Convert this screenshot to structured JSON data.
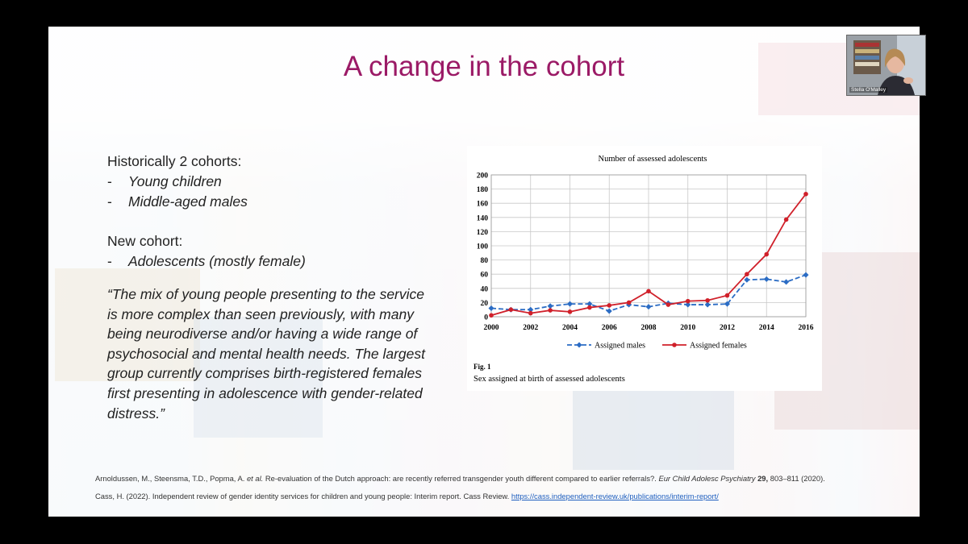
{
  "slide": {
    "title": "A change in the cohort",
    "historic_heading": "Historically 2 cohorts:",
    "historic_items": [
      "Young children",
      "Middle-aged males"
    ],
    "new_heading": "New cohort:",
    "new_items": [
      "Adolescents (mostly female)"
    ],
    "bullet_marker": "-",
    "quote": "“The mix of young people presenting to the service is more complex than seen previously, with many being neurodiverse and/or having a wide range of psychosocial and mental health needs. The largest group currently comprises birth-registered females first presenting in adolescence with gender-related distress.”",
    "references": {
      "ref1_authors": "Arnoldussen, M., Steensma, T.D., Popma, A. ",
      "ref1_etal": "et al.",
      "ref1_title": " Re-evaluation of the Dutch approach: are recently referred transgender youth different compared to earlier referrals?. ",
      "ref1_journal": "Eur Child Adolesc Psychiatry",
      "ref1_volume": " 29,",
      "ref1_pages": " 803–811 (2020).",
      "ref2_text": "Cass, H. (2022). Independent review of gender identity services for children and young people: Interim report. Cass Review. ",
      "ref2_link": "https://cass.independent-review.uk/publications/interim-report/"
    }
  },
  "figure": {
    "caption_label": "Fig. 1",
    "caption_text": "Sex assigned at birth of assessed adolescents"
  },
  "chart_data": {
    "type": "line",
    "title": "Number of assessed adolescents",
    "x": [
      2000,
      2001,
      2002,
      2003,
      2004,
      2005,
      2006,
      2007,
      2008,
      2009,
      2010,
      2011,
      2012,
      2013,
      2014,
      2015,
      2016
    ],
    "x_ticks": [
      2000,
      2002,
      2004,
      2006,
      2008,
      2010,
      2012,
      2014,
      2016
    ],
    "y_ticks": [
      0,
      20,
      40,
      60,
      80,
      100,
      120,
      140,
      160,
      180,
      200
    ],
    "xlim": [
      2000,
      2016
    ],
    "ylim": [
      0,
      200
    ],
    "grid": true,
    "legend_position": "bottom",
    "series": [
      {
        "name": "Assigned males",
        "style": "dashed",
        "color": "#2b6cc4",
        "values": [
          12,
          10,
          10,
          15,
          18,
          18,
          8,
          17,
          14,
          19,
          17,
          17,
          18,
          52,
          53,
          49,
          59
        ]
      },
      {
        "name": "Assigned females",
        "style": "solid",
        "color": "#d0202a",
        "values": [
          2,
          10,
          5,
          9,
          7,
          13,
          16,
          20,
          36,
          17,
          22,
          23,
          30,
          60,
          88,
          137,
          173
        ]
      }
    ]
  },
  "video": {
    "name": "Stella O'Malley"
  }
}
